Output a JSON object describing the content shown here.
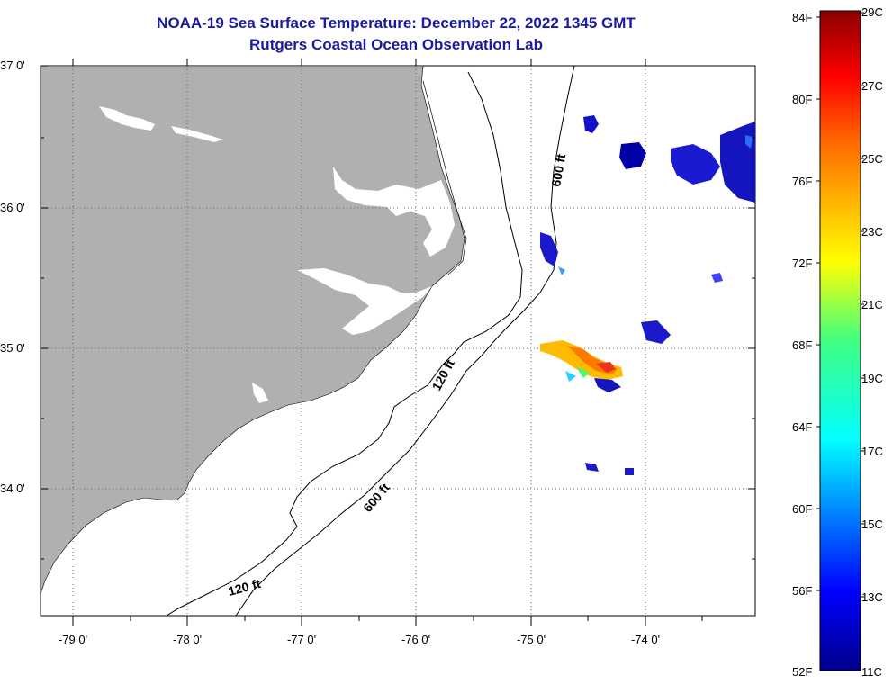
{
  "title_line1": "NOAA-19 Sea Surface Temperature:  December 22, 2022 1345 GMT",
  "title_line2": "Rutgers Coastal Ocean Observation Lab",
  "lat_labels": [
    "37 0'",
    "36 0'",
    "35 0'",
    "34 0'"
  ],
  "lon_labels": [
    "-79 0'",
    "-78 0'",
    "-77 0'",
    "-76 0'",
    "-75 0'",
    "-74 0'"
  ],
  "contour_labels": {
    "c600_north": "600 ft",
    "c120_mid": "120 ft",
    "c600_south": "600 ft",
    "c120_south": "120 ft"
  },
  "colorbar": {
    "fahrenheit": [
      "84F",
      "80F",
      "76F",
      "72F",
      "68F",
      "64F",
      "60F",
      "56F",
      "52F"
    ],
    "celsius": [
      "29C",
      "27C",
      "25C",
      "23C",
      "21C",
      "19C",
      "17C",
      "15C",
      "13C",
      "11C"
    ],
    "range_f": [
      52,
      84
    ],
    "range_c": [
      11,
      29
    ]
  },
  "colors": {
    "land": "#b0b0b0",
    "title": "#1a1aa6",
    "cold": "#00008b",
    "warm": "#8b0000"
  }
}
